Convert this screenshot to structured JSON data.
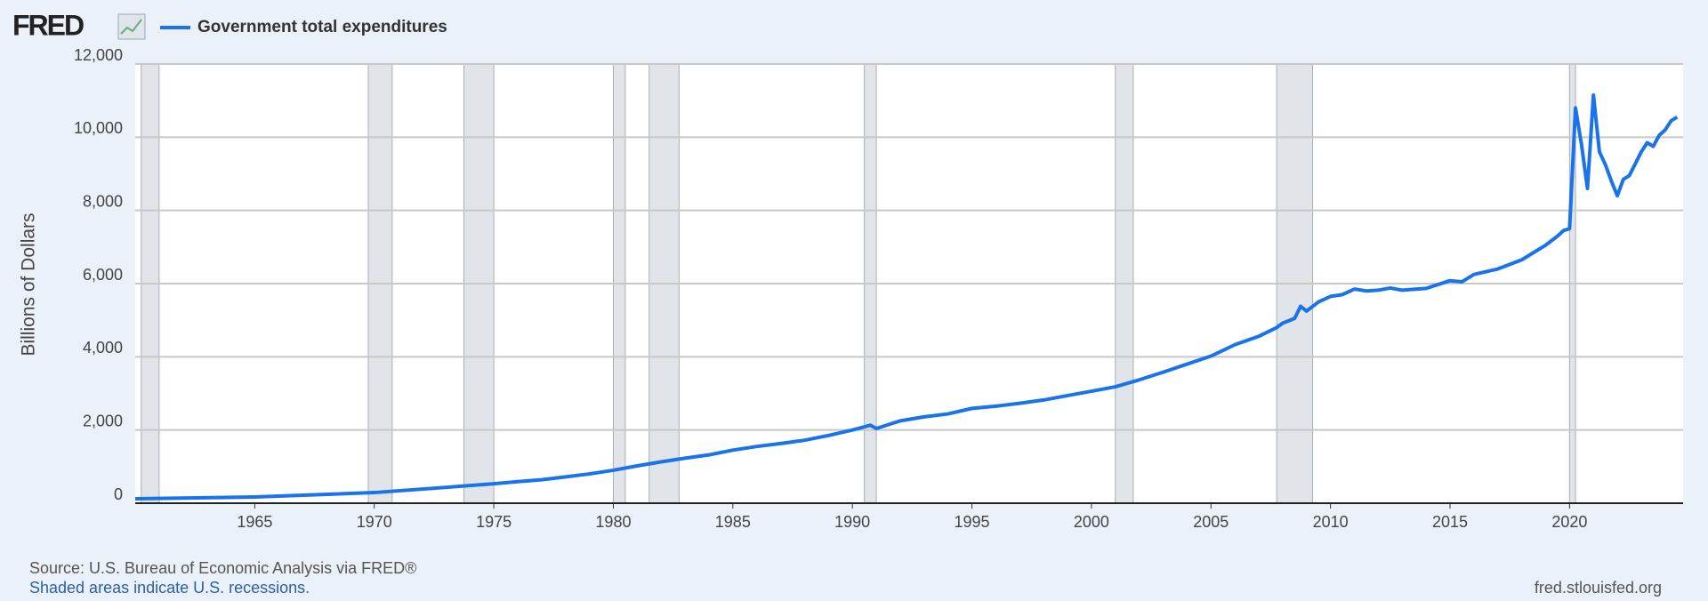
{
  "logo": "FRED",
  "chart_data": {
    "type": "line",
    "ylabel": "Billions of Dollars",
    "x": [
      1960,
      1965,
      1970,
      1975,
      1976,
      1977,
      1978,
      1979,
      1980,
      1981,
      1982,
      1983,
      1984,
      1985,
      1986,
      1987,
      1988,
      1989,
      1990,
      1990.75,
      1991,
      1992,
      1993,
      1994,
      1995,
      1996,
      1997,
      1998,
      1999,
      2000,
      2001,
      2002,
      2003,
      2004,
      2005,
      2006,
      2007,
      2007.75,
      2008,
      2008.5,
      2008.75,
      2009,
      2009.5,
      2010,
      2010.5,
      2011,
      2011.5,
      2012,
      2012.5,
      2013,
      2014,
      2015,
      2015.5,
      2016,
      2017,
      2018,
      2019,
      2019.5,
      2019.75,
      2020,
      2020.25,
      2020.5,
      2020.75,
      2021,
      2021.25,
      2021.5,
      2021.75,
      2022,
      2022.25,
      2022.5,
      2023,
      2023.25,
      2023.5,
      2023.75,
      2024,
      2024.25,
      2024.5
    ],
    "series": [
      {
        "name": "Government total expenditures",
        "color": "#1a73e8",
        "values": [
          120,
          170,
          290,
          530,
          590,
          640,
          720,
          800,
          900,
          1020,
          1130,
          1230,
          1320,
          1450,
          1550,
          1630,
          1720,
          1850,
          2000,
          2130,
          2040,
          2250,
          2360,
          2440,
          2590,
          2650,
          2730,
          2820,
          2940,
          3060,
          3180,
          3370,
          3580,
          3800,
          4020,
          4330,
          4560,
          4800,
          4920,
          5050,
          5380,
          5250,
          5500,
          5650,
          5700,
          5850,
          5800,
          5820,
          5880,
          5820,
          5870,
          6080,
          6050,
          6250,
          6400,
          6650,
          7050,
          7300,
          7450,
          7500,
          10800,
          9800,
          8600,
          11150,
          9600,
          9250,
          8800,
          8400,
          8850,
          8950,
          9600,
          9850,
          9750,
          10050,
          10200,
          10450,
          10550
        ]
      }
    ],
    "recessions": [
      [
        1960.25,
        1961.0
      ],
      [
        1969.75,
        1970.75
      ],
      [
        1973.75,
        1975.0
      ],
      [
        1980.0,
        1980.5
      ],
      [
        1981.5,
        1982.75
      ],
      [
        1990.5,
        1991.0
      ],
      [
        2001.0,
        2001.75
      ],
      [
        2007.75,
        2009.25
      ],
      [
        2020.0,
        2020.25
      ]
    ],
    "xlim": [
      1960,
      2024.75
    ],
    "xticks": [
      1965,
      1970,
      1975,
      1980,
      1985,
      1990,
      1995,
      2000,
      2005,
      2010,
      2015,
      2020
    ],
    "ylim": [
      0,
      12000
    ],
    "yticks": [
      0,
      {
        "value": 2000,
        "label": "2,000"
      },
      {
        "value": 4000,
        "label": "4,000"
      },
      {
        "value": 6000,
        "label": "6,000"
      },
      {
        "value": 8000,
        "label": "8,000"
      },
      {
        "value": 10000,
        "label": "10,000"
      },
      {
        "value": 12000,
        "label": "12,000"
      }
    ],
    "grid": true
  },
  "source": "Source: U.S. Bureau of Economic Analysis via FRED®",
  "note": "Shaded areas indicate U.S. recessions.",
  "site": "fred.stlouisfed.org"
}
